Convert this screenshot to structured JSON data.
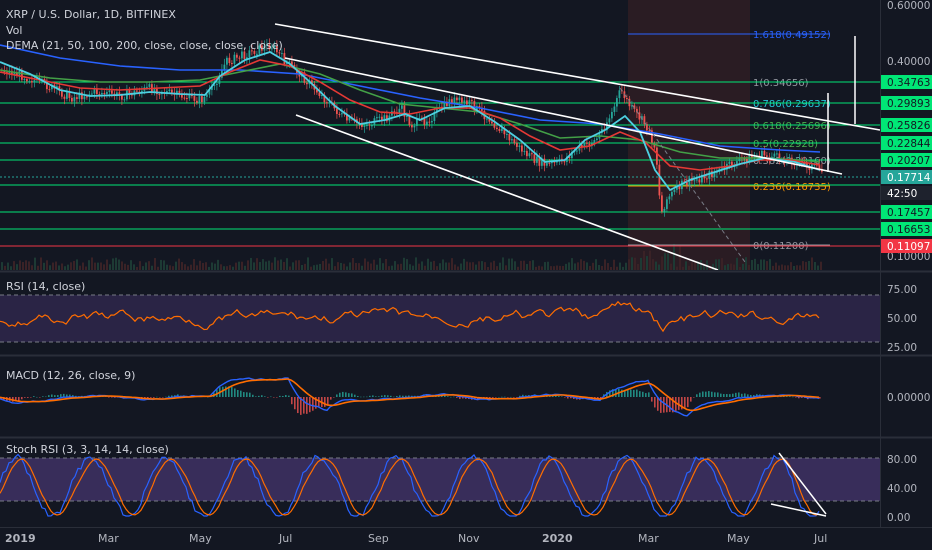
{
  "header": {
    "symbol": "XRP / U.S. Dollar, 1D, BITFINEX",
    "vol_label": "Vol",
    "dema_label": "DEMA (21, 50, 100, 200, close, close, close, close)"
  },
  "main_axis": {
    "ticks": [
      "0.60000",
      "0.40000",
      "0.10000"
    ],
    "tags": [
      {
        "label": "0.34763",
        "color": "#00e676"
      },
      {
        "label": "0.29893",
        "color": "#00e676"
      },
      {
        "label": "0.25826",
        "color": "#00e676"
      },
      {
        "label": "0.22844",
        "color": "#00e676"
      },
      {
        "label": "0.20207",
        "color": "#00e676"
      },
      {
        "label": "0.17714",
        "color": "#26a69a"
      },
      {
        "label": "42:50",
        "color": "#1e222d"
      },
      {
        "label": "0.17457",
        "color": "#00e676"
      },
      {
        "label": "0.16653",
        "color": "#00e676"
      },
      {
        "label": "0.11097",
        "color": "#f23645"
      }
    ]
  },
  "fib_levels": [
    {
      "label": "1.618(0.49152)",
      "color": "#2962ff"
    },
    {
      "label": "1(0.34656)",
      "color": "#9598a1"
    },
    {
      "label": "0.786(0.29637)",
      "color": "#26c6da"
    },
    {
      "label": "0.618(0.25696)",
      "color": "#4caf50"
    },
    {
      "label": "0.5(0.22928)",
      "color": "#4caf50"
    },
    {
      "label": "0.382(0.20160)",
      "color": "#9598a1"
    },
    {
      "label": "0.236(0.16735)",
      "color": "#ff9800"
    },
    {
      "label": "0(0.11200)",
      "color": "#9598a1"
    }
  ],
  "rsi": {
    "label": "RSI (14, close)",
    "ticks": [
      "75.00",
      "50.00",
      "25.00"
    ]
  },
  "macd": {
    "label": "MACD (12, 26, close, 9)",
    "ticks": [
      "0.00000"
    ]
  },
  "stoch": {
    "label": "Stoch RSI (3, 3, 14, 14, close)",
    "ticks": [
      "80.00",
      "40.00",
      "0.00"
    ]
  },
  "x_axis": {
    "labels": [
      "2019",
      "Mar",
      "May",
      "Jul",
      "Sep",
      "Nov",
      "2020",
      "Mar",
      "May",
      "Jul"
    ]
  },
  "colors": {
    "background": "#131722",
    "price_up": "#26a69a",
    "price_down": "#ef5350",
    "dema21": "#4dd0e1",
    "dema50": "#e53935",
    "dema100": "#43a047",
    "dema200": "#2962ff",
    "rsi_line": "#ff6d00",
    "macd_line": "#2962ff",
    "signal_line": "#ff6d00",
    "stoch_k": "#2962ff",
    "stoch_d": "#ff6d00",
    "band_fill": "#7e57c2"
  },
  "chart_data": {
    "type": "line",
    "series": [
      {
        "name": "XRP / U.S. Dollar",
        "x": [
          "2019-01",
          "2019-02",
          "2019-03",
          "2019-04",
          "2019-05",
          "2019-06",
          "2019-07",
          "2019-08",
          "2019-09",
          "2019-10",
          "2019-11",
          "2019-12",
          "2020-01",
          "2020-02",
          "2020-03",
          "2020-04",
          "2020-05",
          "2020-06"
        ],
        "values": [
          0.35,
          0.31,
          0.31,
          0.3,
          0.38,
          0.43,
          0.35,
          0.27,
          0.25,
          0.29,
          0.25,
          0.19,
          0.2,
          0.3,
          0.15,
          0.2,
          0.21,
          0.18
        ]
      }
    ],
    "ylim": [
      0.1,
      0.6
    ]
  }
}
